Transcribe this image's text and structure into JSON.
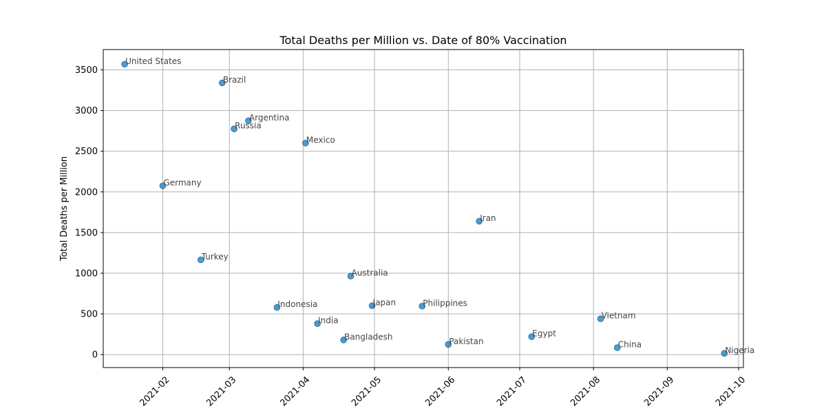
{
  "chart_data": {
    "type": "scatter",
    "title": "Total Deaths per Million vs. Date of 80% Vaccination",
    "xlabel": "",
    "ylabel": "Total Deaths per Million",
    "x_type": "date",
    "xlim": [
      "2021-01-07",
      "2021-10-03"
    ],
    "ylim": [
      -160,
      3750
    ],
    "x_ticks": [
      "2021-02",
      "2021-03",
      "2021-04",
      "2021-05",
      "2021-06",
      "2021-07",
      "2021-08",
      "2021-09",
      "2021-10"
    ],
    "y_ticks": [
      0,
      500,
      1000,
      1500,
      2000,
      2500,
      3000,
      3500
    ],
    "grid": true,
    "legend": false,
    "marker_color": "#1f77b4",
    "points": [
      {
        "label": "United States",
        "x": "2021-01-16",
        "y": 3570
      },
      {
        "label": "Germany",
        "x": "2021-02-01",
        "y": 2075
      },
      {
        "label": "Turkey",
        "x": "2021-02-17",
        "y": 1165
      },
      {
        "label": "Brazil",
        "x": "2021-02-26",
        "y": 3340
      },
      {
        "label": "Russia",
        "x": "2021-03-03",
        "y": 2775
      },
      {
        "label": "Argentina",
        "x": "2021-03-09",
        "y": 2875
      },
      {
        "label": "Indonesia",
        "x": "2021-03-21",
        "y": 580
      },
      {
        "label": "Mexico",
        "x": "2021-04-02",
        "y": 2600
      },
      {
        "label": "India",
        "x": "2021-04-07",
        "y": 380
      },
      {
        "label": "Bangladesh",
        "x": "2021-04-18",
        "y": 180
      },
      {
        "label": "Australia",
        "x": "2021-04-21",
        "y": 965
      },
      {
        "label": "Japan",
        "x": "2021-04-30",
        "y": 600
      },
      {
        "label": "Philippines",
        "x": "2021-05-21",
        "y": 595
      },
      {
        "label": "Pakistan",
        "x": "2021-06-01",
        "y": 125
      },
      {
        "label": "Iran",
        "x": "2021-06-14",
        "y": 1640
      },
      {
        "label": "Egypt",
        "x": "2021-07-06",
        "y": 220
      },
      {
        "label": "Vietnam",
        "x": "2021-08-04",
        "y": 440
      },
      {
        "label": "China",
        "x": "2021-08-11",
        "y": 85
      },
      {
        "label": "Nigeria",
        "x": "2021-09-25",
        "y": 15
      }
    ]
  }
}
